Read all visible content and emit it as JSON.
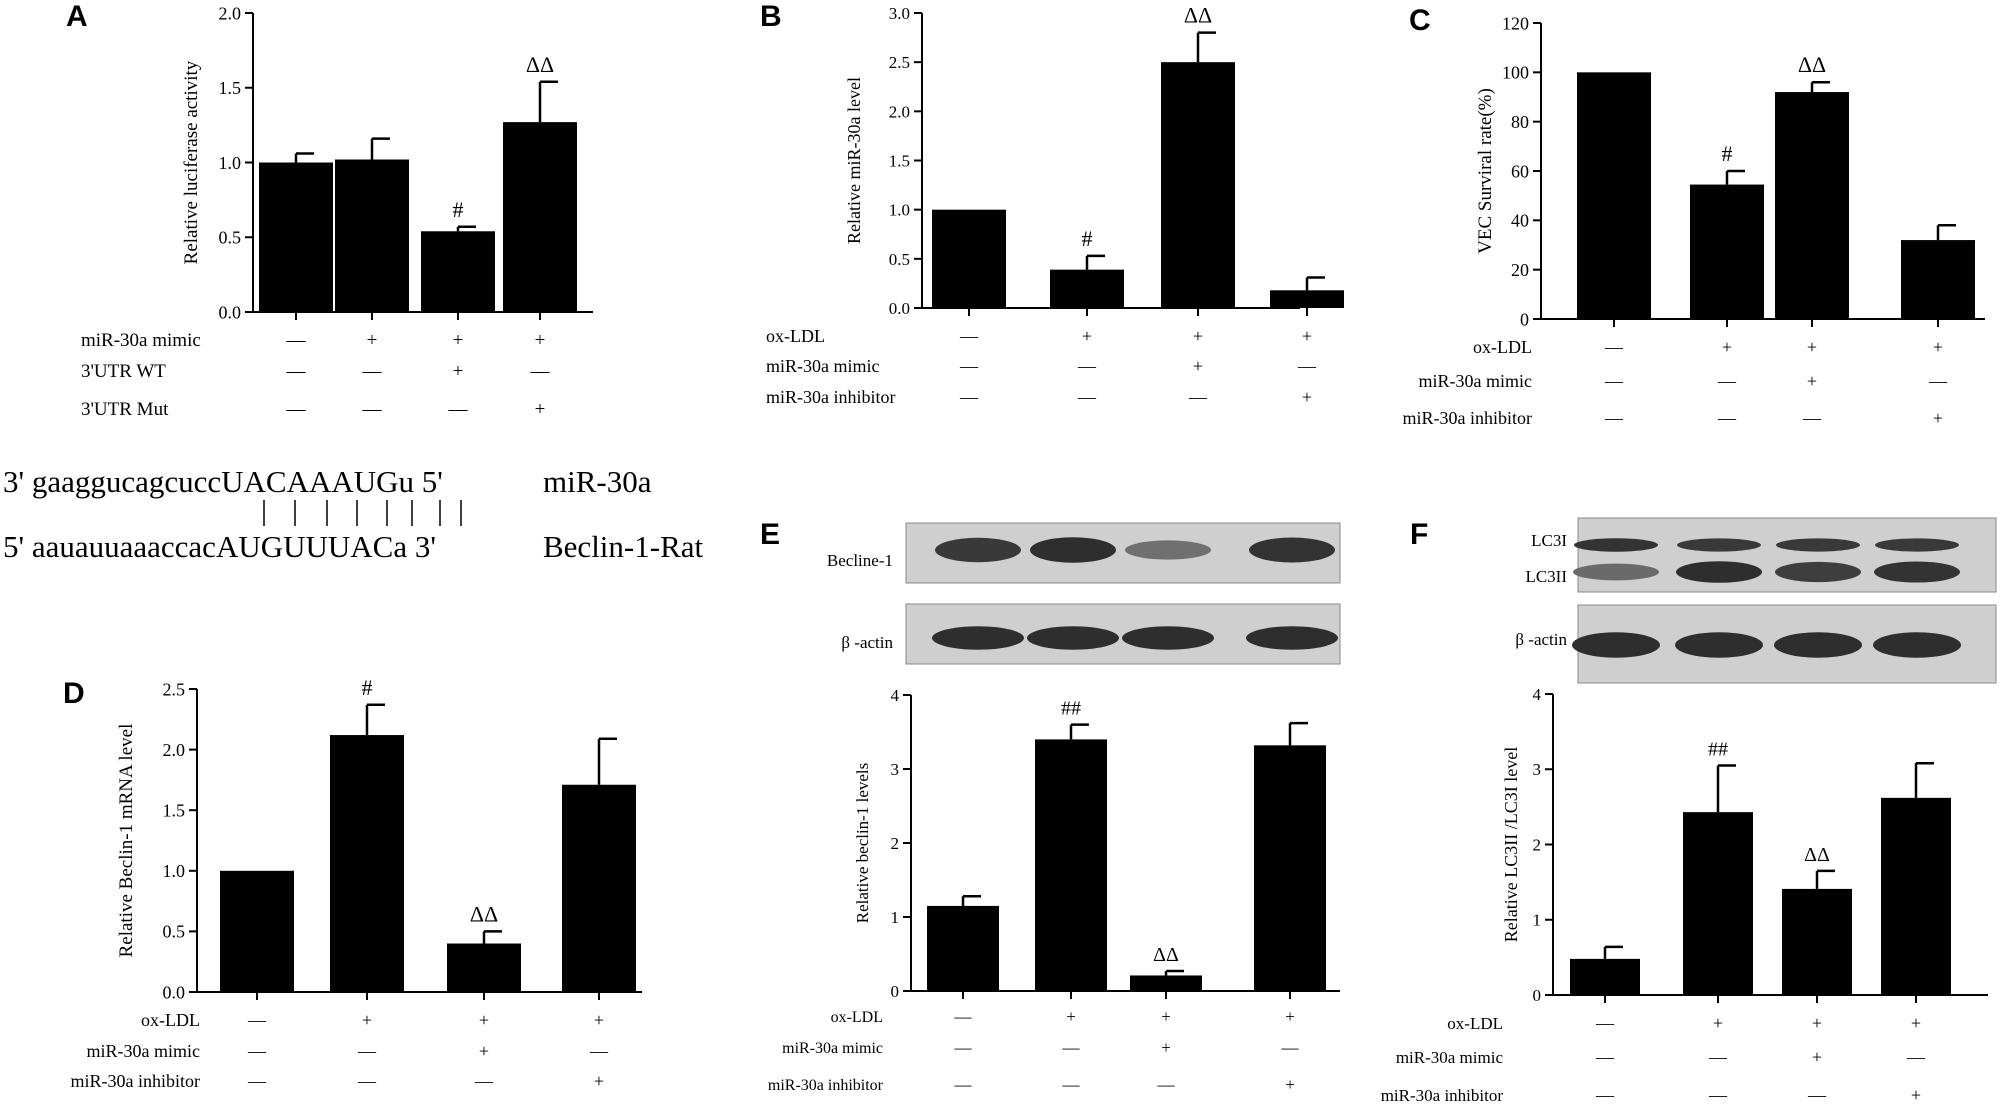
{
  "chart_data": [
    {
      "panel": "A",
      "type": "bar",
      "ylabel": "Relative  luciferase activity",
      "ylim": [
        0,
        2.0
      ],
      "yticks": [
        "0.0",
        "0.5",
        "1.0",
        "1.5",
        "2.0"
      ],
      "values": [
        1.0,
        1.02,
        0.54,
        1.27
      ],
      "errors": [
        0.06,
        0.14,
        0.03,
        0.27
      ],
      "annotations": [
        "",
        "",
        "#",
        "ΔΔ"
      ],
      "rows": [
        {
          "label": "miR-30a mimic",
          "marks": [
            "—",
            "+",
            "+",
            "+"
          ]
        },
        {
          "label": "3'UTR WT",
          "marks": [
            "—",
            "—",
            "+",
            "—"
          ]
        },
        {
          "label": "3'UTR Mut",
          "marks": [
            "—",
            "—",
            "—",
            "+"
          ]
        }
      ]
    },
    {
      "panel": "B",
      "type": "bar",
      "ylabel": "Relative  miR-30a level",
      "ylim": [
        0,
        3.0
      ],
      "yticks": [
        "0.0",
        "0.5",
        "1.0",
        "1.5",
        "2.0",
        "2.5",
        "3.0"
      ],
      "values": [
        1.0,
        0.39,
        2.5,
        0.18
      ],
      "errors": [
        0.0,
        0.14,
        0.3,
        0.13
      ],
      "annotations": [
        "",
        "#",
        "ΔΔ",
        ""
      ],
      "rows": [
        {
          "label": "ox-LDL",
          "marks": [
            "—",
            "+",
            "+",
            "+"
          ]
        },
        {
          "label": "miR-30a mimic",
          "marks": [
            "—",
            "—",
            "+",
            "—"
          ]
        },
        {
          "label": "miR-30a inhibitor",
          "marks": [
            "—",
            "—",
            "—",
            "+"
          ]
        }
      ]
    },
    {
      "panel": "C",
      "type": "bar",
      "ylabel": "VEC Surviral rate(%)",
      "ylim": [
        0,
        120
      ],
      "yticks": [
        "0",
        "20",
        "40",
        "60",
        "80",
        "100",
        "120"
      ],
      "values": [
        100,
        54.5,
        92,
        32
      ],
      "errors": [
        0,
        5.5,
        4,
        6
      ],
      "annotations": [
        "",
        "#",
        "ΔΔ",
        ""
      ],
      "rows": [
        {
          "label": "ox-LDL",
          "marks": [
            "—",
            "+",
            "+",
            "+"
          ]
        },
        {
          "label": "miR-30a mimic",
          "marks": [
            "—",
            "—",
            "+",
            "—"
          ]
        },
        {
          "label": "miR-30a inhibitor",
          "marks": [
            "—",
            "—",
            "—",
            "+"
          ]
        }
      ]
    },
    {
      "panel": "D",
      "type": "bar",
      "ylabel": "Relative Beclin-1 mRNA level",
      "ylim": [
        0,
        2.5
      ],
      "yticks": [
        "0.0",
        "0.5",
        "1.0",
        "1.5",
        "2.0",
        "2.5"
      ],
      "values": [
        1.0,
        2.12,
        0.4,
        1.71
      ],
      "errors": [
        0.0,
        0.25,
        0.1,
        0.38
      ],
      "annotations": [
        "",
        "#",
        "ΔΔ",
        ""
      ],
      "rows": [
        {
          "label": "ox-LDL",
          "marks": [
            "—",
            "+",
            "+",
            "+"
          ]
        },
        {
          "label": "miR-30a mimic",
          "marks": [
            "—",
            "—",
            "+",
            "—"
          ]
        },
        {
          "label": "miR-30a inhibitor",
          "marks": [
            "—",
            "—",
            "—",
            "+"
          ]
        }
      ]
    },
    {
      "panel": "E",
      "type": "bar",
      "ylabel": "Relative beclin-1 levels",
      "ylim": [
        0,
        4
      ],
      "yticks": [
        "0",
        "1",
        "2",
        "3",
        "4"
      ],
      "values": [
        1.15,
        3.4,
        0.21,
        3.32
      ],
      "errors": [
        0.13,
        0.2,
        0.06,
        0.3
      ],
      "annotations": [
        "",
        "##",
        "ΔΔ",
        ""
      ],
      "rows": [
        {
          "label": "ox-LDL",
          "marks": [
            "—",
            "+",
            "+",
            "+"
          ]
        },
        {
          "label": "miR-30a mimic",
          "marks": [
            "—",
            "—",
            "+",
            "—"
          ]
        },
        {
          "label": "miR-30a inhibitor",
          "marks": [
            "—",
            "—",
            "—",
            "+"
          ]
        }
      ]
    },
    {
      "panel": "F",
      "type": "bar",
      "ylabel": "Relative LC3II /LC3I   level",
      "ylim": [
        0,
        4
      ],
      "yticks": [
        "0",
        "1",
        "2",
        "3",
        "4"
      ],
      "values": [
        0.48,
        2.43,
        1.41,
        2.62
      ],
      "errors": [
        0.16,
        0.62,
        0.24,
        0.46
      ],
      "annotations": [
        "",
        "##",
        "ΔΔ",
        ""
      ],
      "rows": [
        {
          "label": "ox-LDL",
          "marks": [
            "—",
            "+",
            "+",
            "+"
          ]
        },
        {
          "label": "miR-30a mimic",
          "marks": [
            "—",
            "—",
            "+",
            "—"
          ]
        },
        {
          "label": "miR-30a inhibitor",
          "marks": [
            "—",
            "—",
            "—",
            "+"
          ]
        }
      ]
    }
  ],
  "sequence": {
    "line1_prefix": "3' gaaggucagcucc",
    "line1_seed": "UACAAAUG",
    "line1_suffix": "u 5'",
    "line1_name": "miR-30a",
    "line2_prefix": "5' aauauuaaaccac",
    "line2_seed": "AUGUUUAC",
    "line2_suffix": "a 3'",
    "line2_name": "Beclin-1-Rat"
  },
  "blots": {
    "E": {
      "top_label": "Becline-1",
      "bottom_label": "β -actin",
      "top_intensity": [
        0.85,
        0.95,
        0.35,
        0.9
      ],
      "bottom_intensity": [
        0.95,
        0.95,
        0.95,
        0.95
      ]
    },
    "F": {
      "top_label_1": "LC3I",
      "top_label_2": "LC3II",
      "bottom_label": "β -actin",
      "lc3i_intensity": [
        0.9,
        0.85,
        0.85,
        0.85
      ],
      "lc3ii_intensity": [
        0.4,
        0.95,
        0.8,
        0.9
      ],
      "bottom_intensity": [
        0.95,
        0.95,
        0.95,
        0.95
      ]
    }
  }
}
